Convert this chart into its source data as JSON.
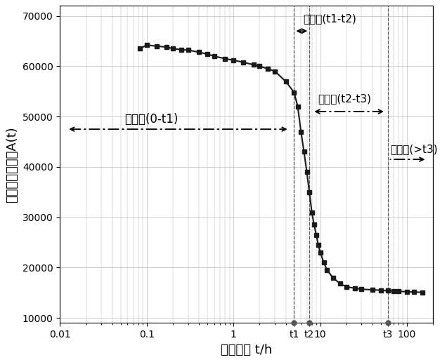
{
  "xlabel": "水化时间 t/h",
  "ylabel": "第一回波峰振幅A(t)",
  "xlim": [
    0.01,
    200
  ],
  "ylim": [
    9000,
    72000
  ],
  "yticks": [
    10000,
    20000,
    30000,
    40000,
    50000,
    60000,
    70000
  ],
  "x_data": [
    0.083,
    0.1,
    0.13,
    0.17,
    0.2,
    0.25,
    0.3,
    0.4,
    0.5,
    0.6,
    0.8,
    1.0,
    1.3,
    1.7,
    2.0,
    2.5,
    3.0,
    4.0,
    5.0,
    5.5,
    6.0,
    6.5,
    7.0,
    7.5,
    8.0,
    8.5,
    9.0,
    9.5,
    10.0,
    11.0,
    12.0,
    14.0,
    17.0,
    20.0,
    25.0,
    30.0,
    40.0,
    50.0,
    60.0,
    70.0,
    80.0,
    100.0,
    120.0,
    150.0
  ],
  "y_data": [
    63500,
    64200,
    64000,
    63800,
    63500,
    63300,
    63200,
    62800,
    62400,
    62000,
    61500,
    61200,
    60800,
    60300,
    60000,
    59500,
    59000,
    57000,
    54800,
    52000,
    47000,
    43000,
    39000,
    35000,
    31000,
    28500,
    26500,
    24500,
    23000,
    21000,
    19500,
    18000,
    16800,
    16200,
    15900,
    15700,
    15600,
    15500,
    15400,
    15350,
    15300,
    15200,
    15150,
    15100
  ],
  "curve_color": "#1a1a1a",
  "marker_color": "#1a1a1a",
  "grid_color": "#aaaaaa",
  "t1": 5.0,
  "t2": 7.5,
  "t3": 60.0,
  "annotation_fontsize": 11,
  "axis_fontsize": 13,
  "tick_fontsize": 10,
  "background_color": "#ffffff",
  "label_jiasuqi": "加速期(t1-t2)",
  "label_chushiqi": "初始期(0-t1)",
  "label_jiansuqi": "减速期(t2-t3)",
  "label_wendingqi": "稳定期(>t3)",
  "xlabel_text": "水化时间 t/h",
  "ylabel_text": "第一回波峰振幅A(t)"
}
